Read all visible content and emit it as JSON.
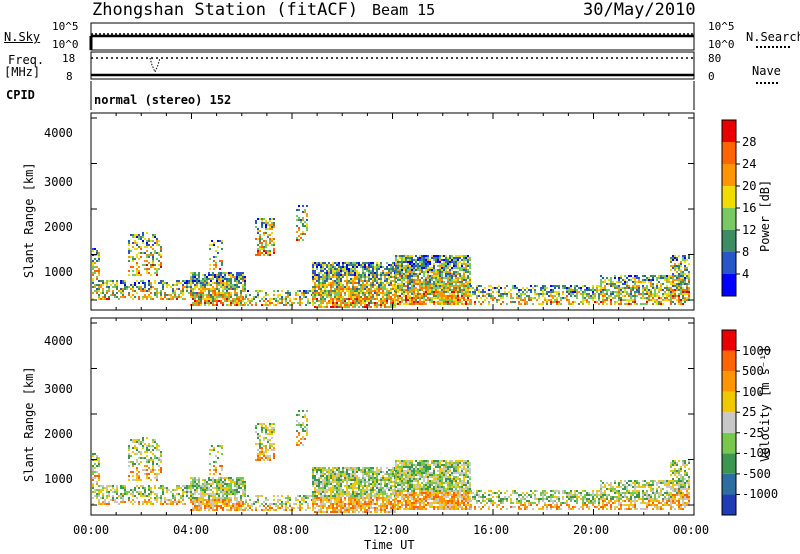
{
  "header": {
    "station": "Zhongshan Station (fitACF)",
    "beam": "Beam 15",
    "date": "30/May/2010"
  },
  "top_panels": {
    "nsky_label": "N.Sky",
    "nsky_ticks": [
      "10^5",
      "10^0"
    ],
    "nsearch_label": "N.Search",
    "nsearch_ticks": [
      "10^5",
      "10^0"
    ],
    "freq_label": "Freq.",
    "freq_unit": "[MHz]",
    "freq_ticks": [
      "18",
      "8"
    ],
    "nave_label": "Nave",
    "nave_ticks": [
      "80",
      "0"
    ],
    "cpid_label": "CPID",
    "cpid_value": "normal (stereo) 152"
  },
  "chart_data": [
    {
      "type": "heatmap",
      "name": "power",
      "ylabel": "Slant Range [km]",
      "yticks": [
        "4000",
        "3000",
        "2000",
        "1000"
      ],
      "colorbar_label": "Power [dB]",
      "colorbar_ticks": [
        "28",
        "24",
        "20",
        "16",
        "12",
        "8",
        "4"
      ],
      "colors": [
        "#0000ff",
        "#2656c8",
        "#3c8c64",
        "#78c864",
        "#f0dc00",
        "#ff9600",
        "#ff6400",
        "#e60000"
      ],
      "xticks": [
        "00:00",
        "04:00",
        "08:00",
        "12:00",
        "16:00",
        "20:00",
        "00:00"
      ]
    },
    {
      "type": "heatmap",
      "name": "velocity",
      "ylabel": "Slant Range [km]",
      "yticks": [
        "4000",
        "3000",
        "2000",
        "1000"
      ],
      "colorbar_label": "Velocity [m s⁻¹]",
      "colorbar_ticks": [
        "1000",
        "500",
        "100",
        "25",
        "-25",
        "-100",
        "-500",
        "-1000"
      ],
      "colors": [
        "#1e3cb4",
        "#2d6ea0",
        "#3c9650",
        "#78c850",
        "#c8c8c8",
        "#f0c800",
        "#ff9600",
        "#ff6400",
        "#e60000"
      ],
      "xticks": [
        "00:00",
        "04:00",
        "08:00",
        "12:00",
        "16:00",
        "20:00",
        "00:00"
      ],
      "xlabel": "Time UT"
    }
  ]
}
